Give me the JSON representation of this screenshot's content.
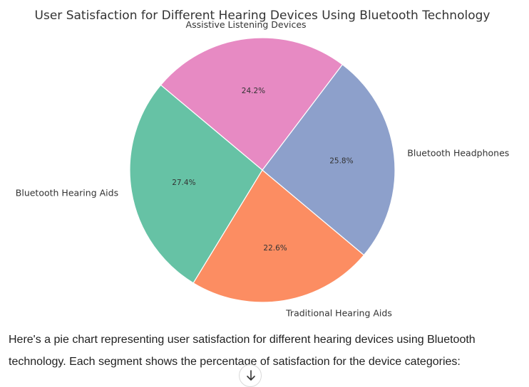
{
  "chart_data": {
    "type": "pie",
    "title": "User Satisfaction for Different Hearing Devices Using Bluetooth Technology",
    "categories": [
      "Bluetooth Hearing Aids",
      "Traditional Hearing Aids",
      "Bluetooth Headphones",
      "Assistive Listening Devices"
    ],
    "values": [
      27.4,
      22.6,
      25.8,
      24.2
    ],
    "value_labels": [
      "27.4%",
      "22.6%",
      "25.8%",
      "24.2%"
    ],
    "colors": [
      "#66c2a5",
      "#fc8d62",
      "#8da0cb",
      "#e78ac3"
    ],
    "start_angle_deg": 140,
    "direction": "counterclockwise",
    "legend": "none"
  },
  "response": {
    "text": "Here's a pie chart representing user satisfaction for different hearing devices using Bluetooth technology. Each segment shows the percentage of satisfaction for the device categories:"
  },
  "controls": {
    "scroll_down_icon": "arrow-down-icon"
  }
}
